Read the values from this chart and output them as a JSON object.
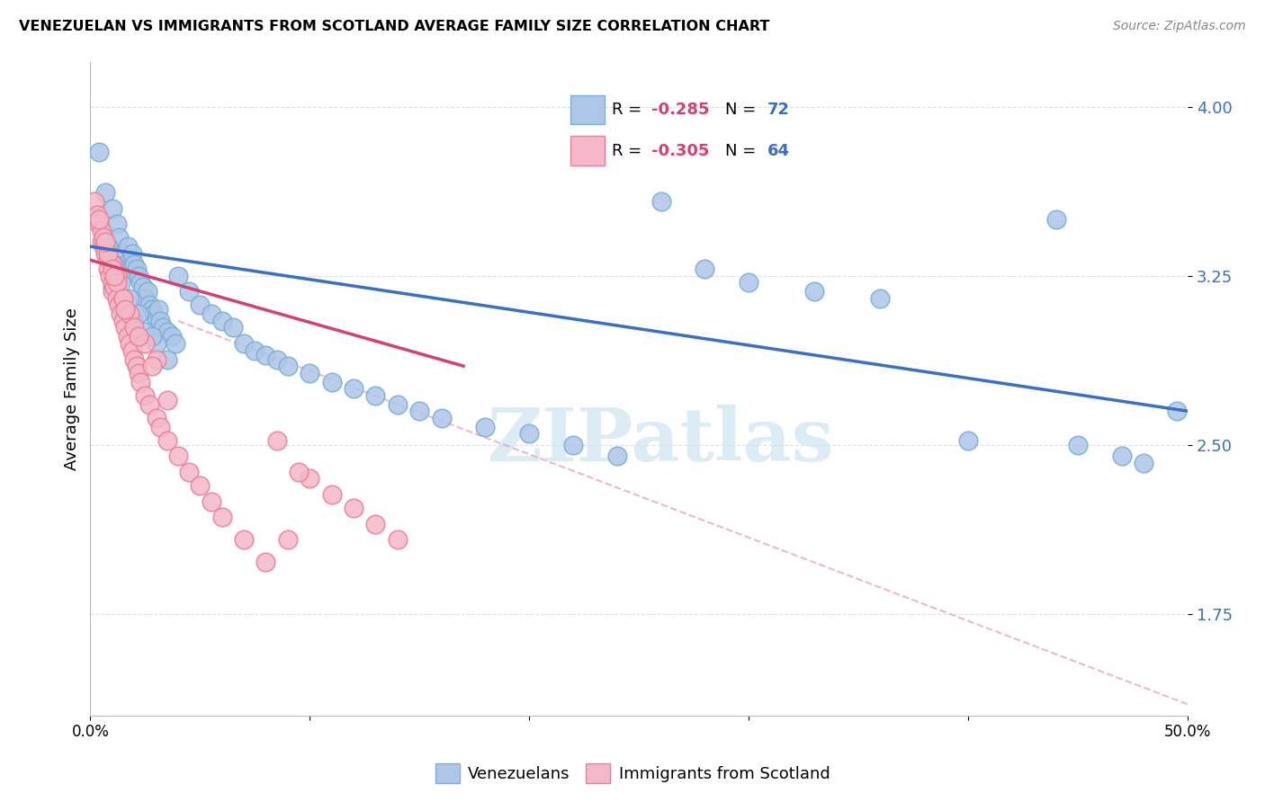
{
  "title": "VENEZUELAN VS IMMIGRANTS FROM SCOTLAND AVERAGE FAMILY SIZE CORRELATION CHART",
  "source": "Source: ZipAtlas.com",
  "ylabel": "Average Family Size",
  "yaxis_ticks": [
    1.75,
    2.5,
    3.25,
    4.0
  ],
  "xmin": 0.0,
  "xmax": 50.0,
  "ymin": 1.3,
  "ymax": 4.2,
  "venezuelan_color": "#aec6e8",
  "scotland_color": "#f4b8c8",
  "venezuelan_edge": "#7bafd4",
  "scotland_edge": "#e8829a",
  "trend_blue": "#3a6fc4",
  "trend_pink": "#d44070",
  "trend_dashed_color": "#e8a0b8",
  "R_venezuelan": -0.285,
  "N_venezuelan": 72,
  "R_scotland": -0.305,
  "N_scotland": 64,
  "legend_R_color": "#d44070",
  "legend_N_color": "#3a6fc4",
  "watermark_text": "ZIPatlas",
  "watermark_color": "#cce4f0",
  "background_color": "#ffffff",
  "grid_color": "#dddddd",
  "blue_x": [
    0.4,
    0.7,
    1.0,
    1.2,
    1.3,
    1.5,
    1.6,
    1.7,
    1.8,
    1.9,
    2.0,
    2.1,
    2.2,
    2.3,
    2.4,
    2.5,
    2.6,
    2.7,
    2.8,
    2.9,
    3.0,
    3.1,
    3.2,
    3.3,
    3.5,
    3.7,
    3.9,
    4.0,
    4.5,
    5.0,
    5.5,
    6.0,
    6.5,
    7.0,
    7.5,
    8.0,
    8.5,
    9.0,
    10.0,
    11.0,
    12.0,
    13.0,
    14.0,
    15.0,
    16.0,
    18.0,
    20.0,
    22.0,
    24.0,
    26.0,
    28.0,
    30.0,
    33.0,
    36.0,
    40.0,
    44.0,
    45.0,
    47.0,
    48.0,
    49.5,
    1.0,
    1.5,
    2.0,
    2.5,
    3.0,
    0.8,
    1.1,
    1.4,
    1.8,
    2.2,
    2.8,
    3.5
  ],
  "blue_y": [
    3.8,
    3.62,
    3.55,
    3.48,
    3.42,
    3.35,
    3.3,
    3.38,
    3.28,
    3.35,
    3.3,
    3.28,
    3.25,
    3.22,
    3.2,
    3.15,
    3.18,
    3.12,
    3.1,
    3.08,
    3.05,
    3.1,
    3.05,
    3.02,
    3.0,
    2.98,
    2.95,
    3.25,
    3.18,
    3.12,
    3.08,
    3.05,
    3.02,
    2.95,
    2.92,
    2.9,
    2.88,
    2.85,
    2.82,
    2.78,
    2.75,
    2.72,
    2.68,
    2.65,
    2.62,
    2.58,
    2.55,
    2.5,
    2.45,
    3.58,
    3.28,
    3.22,
    3.18,
    3.15,
    2.52,
    3.5,
    2.5,
    2.45,
    2.42,
    2.65,
    3.2,
    3.1,
    3.05,
    3.0,
    2.95,
    3.38,
    3.3,
    3.22,
    3.15,
    3.08,
    2.98,
    2.88
  ],
  "pink_x": [
    0.2,
    0.3,
    0.4,
    0.5,
    0.5,
    0.6,
    0.7,
    0.8,
    0.8,
    0.9,
    1.0,
    1.0,
    1.0,
    1.1,
    1.2,
    1.2,
    1.3,
    1.4,
    1.5,
    1.5,
    1.6,
    1.7,
    1.8,
    1.9,
    2.0,
    2.1,
    2.2,
    2.3,
    2.5,
    2.7,
    3.0,
    3.2,
    3.5,
    4.0,
    4.5,
    5.0,
    5.5,
    6.0,
    7.0,
    8.0,
    9.0,
    10.0,
    11.0,
    12.0,
    13.0,
    14.0,
    0.6,
    0.8,
    1.0,
    1.2,
    1.5,
    1.8,
    2.0,
    2.5,
    3.0,
    0.4,
    0.7,
    1.1,
    1.6,
    2.2,
    2.8,
    3.5,
    8.5,
    9.5
  ],
  "pink_y": [
    3.58,
    3.52,
    3.48,
    3.45,
    3.4,
    3.38,
    3.35,
    3.32,
    3.28,
    3.25,
    3.22,
    3.18,
    3.3,
    3.2,
    3.15,
    3.25,
    3.12,
    3.08,
    3.05,
    3.15,
    3.02,
    2.98,
    2.95,
    2.92,
    2.88,
    2.85,
    2.82,
    2.78,
    2.72,
    2.68,
    2.62,
    2.58,
    2.52,
    2.45,
    2.38,
    2.32,
    2.25,
    2.18,
    2.08,
    1.98,
    2.08,
    2.35,
    2.28,
    2.22,
    2.15,
    2.08,
    3.42,
    3.35,
    3.28,
    3.22,
    3.15,
    3.08,
    3.02,
    2.95,
    2.88,
    3.5,
    3.4,
    3.25,
    3.1,
    2.98,
    2.85,
    2.7,
    2.52,
    2.38
  ],
  "blue_trend_start_x": 0.0,
  "blue_trend_start_y": 3.38,
  "blue_trend_end_x": 50.0,
  "blue_trend_end_y": 2.65,
  "pink_trend_start_x": 0.0,
  "pink_trend_start_y": 3.32,
  "pink_trend_end_x": 17.0,
  "pink_trend_end_y": 2.85,
  "dashed_start_x": 4.0,
  "dashed_start_y": 3.05,
  "dashed_end_x": 50.0,
  "dashed_end_y": 1.35
}
